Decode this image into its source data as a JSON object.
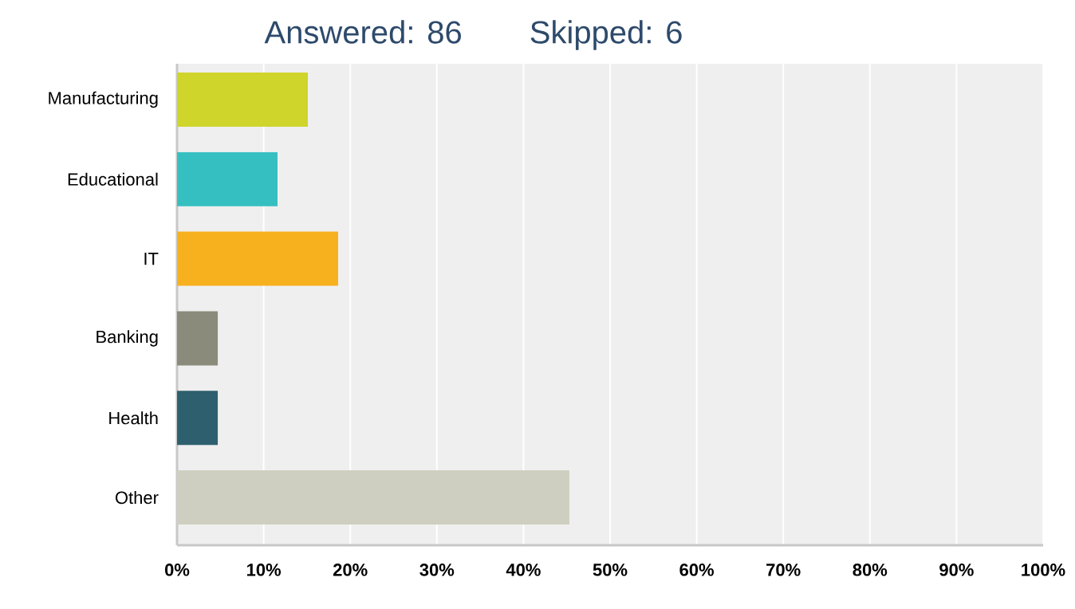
{
  "chart_data": {
    "type": "bar",
    "orientation": "horizontal",
    "title": "Answered: 86",
    "subtitle": "Skipped: 6",
    "categories": [
      "Manufacturing",
      "Educational",
      "IT",
      "Banking",
      "Health",
      "Other"
    ],
    "values": [
      15.1,
      11.6,
      18.6,
      4.7,
      4.7,
      45.3
    ],
    "colors": [
      "#cfd52a",
      "#36bfc1",
      "#f8b11e",
      "#8a8b7a",
      "#2e5f6f",
      "#cfcfc1"
    ],
    "xlim": [
      0,
      100
    ],
    "xticks": [
      {
        "value": 0,
        "label": "0%"
      },
      {
        "value": 10,
        "label": "10%"
      },
      {
        "value": 20,
        "label": "20%"
      },
      {
        "value": 30,
        "label": "30%"
      },
      {
        "value": 40,
        "label": "40%"
      },
      {
        "value": 50,
        "label": "50%"
      },
      {
        "value": 60,
        "label": "60%"
      },
      {
        "value": 70,
        "label": "70%"
      },
      {
        "value": 80,
        "label": "80%"
      },
      {
        "value": 90,
        "label": "90%"
      },
      {
        "value": 100,
        "label": "100%"
      }
    ],
    "grid": "x"
  }
}
